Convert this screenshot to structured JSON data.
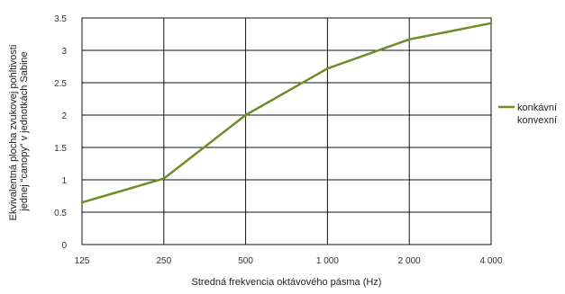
{
  "chart_data": {
    "type": "line",
    "x": [
      125,
      250,
      500,
      1000,
      2000,
      4000
    ],
    "x_tick_labels": [
      "125",
      "250",
      "500",
      "1 000",
      "2 000",
      "4 000"
    ],
    "x_scale": "log",
    "xlabel": "Stredná frekvencia oktávového pásma (Hz)",
    "ylabel_lines": [
      "Ekvivalentná plocha zvukovej pohltivosti",
      "jednej “canopy” v jednotkách Sabine"
    ],
    "ylim": [
      0,
      3.5
    ],
    "y_ticks": [
      0,
      0.5,
      1,
      1.5,
      2,
      2.5,
      3,
      3.5
    ],
    "y_tick_labels": [
      "0",
      "0.5",
      "1",
      "1.5",
      "2",
      "2.5",
      "3",
      "3.5"
    ],
    "grid": true,
    "legend_position": "right",
    "legend_lines": [
      "konkávní",
      "konvexní"
    ],
    "series": [
      {
        "values": [
          0.65,
          1.02,
          2.0,
          2.72,
          3.17,
          3.42
        ],
        "color": "#6e8c27"
      }
    ]
  }
}
